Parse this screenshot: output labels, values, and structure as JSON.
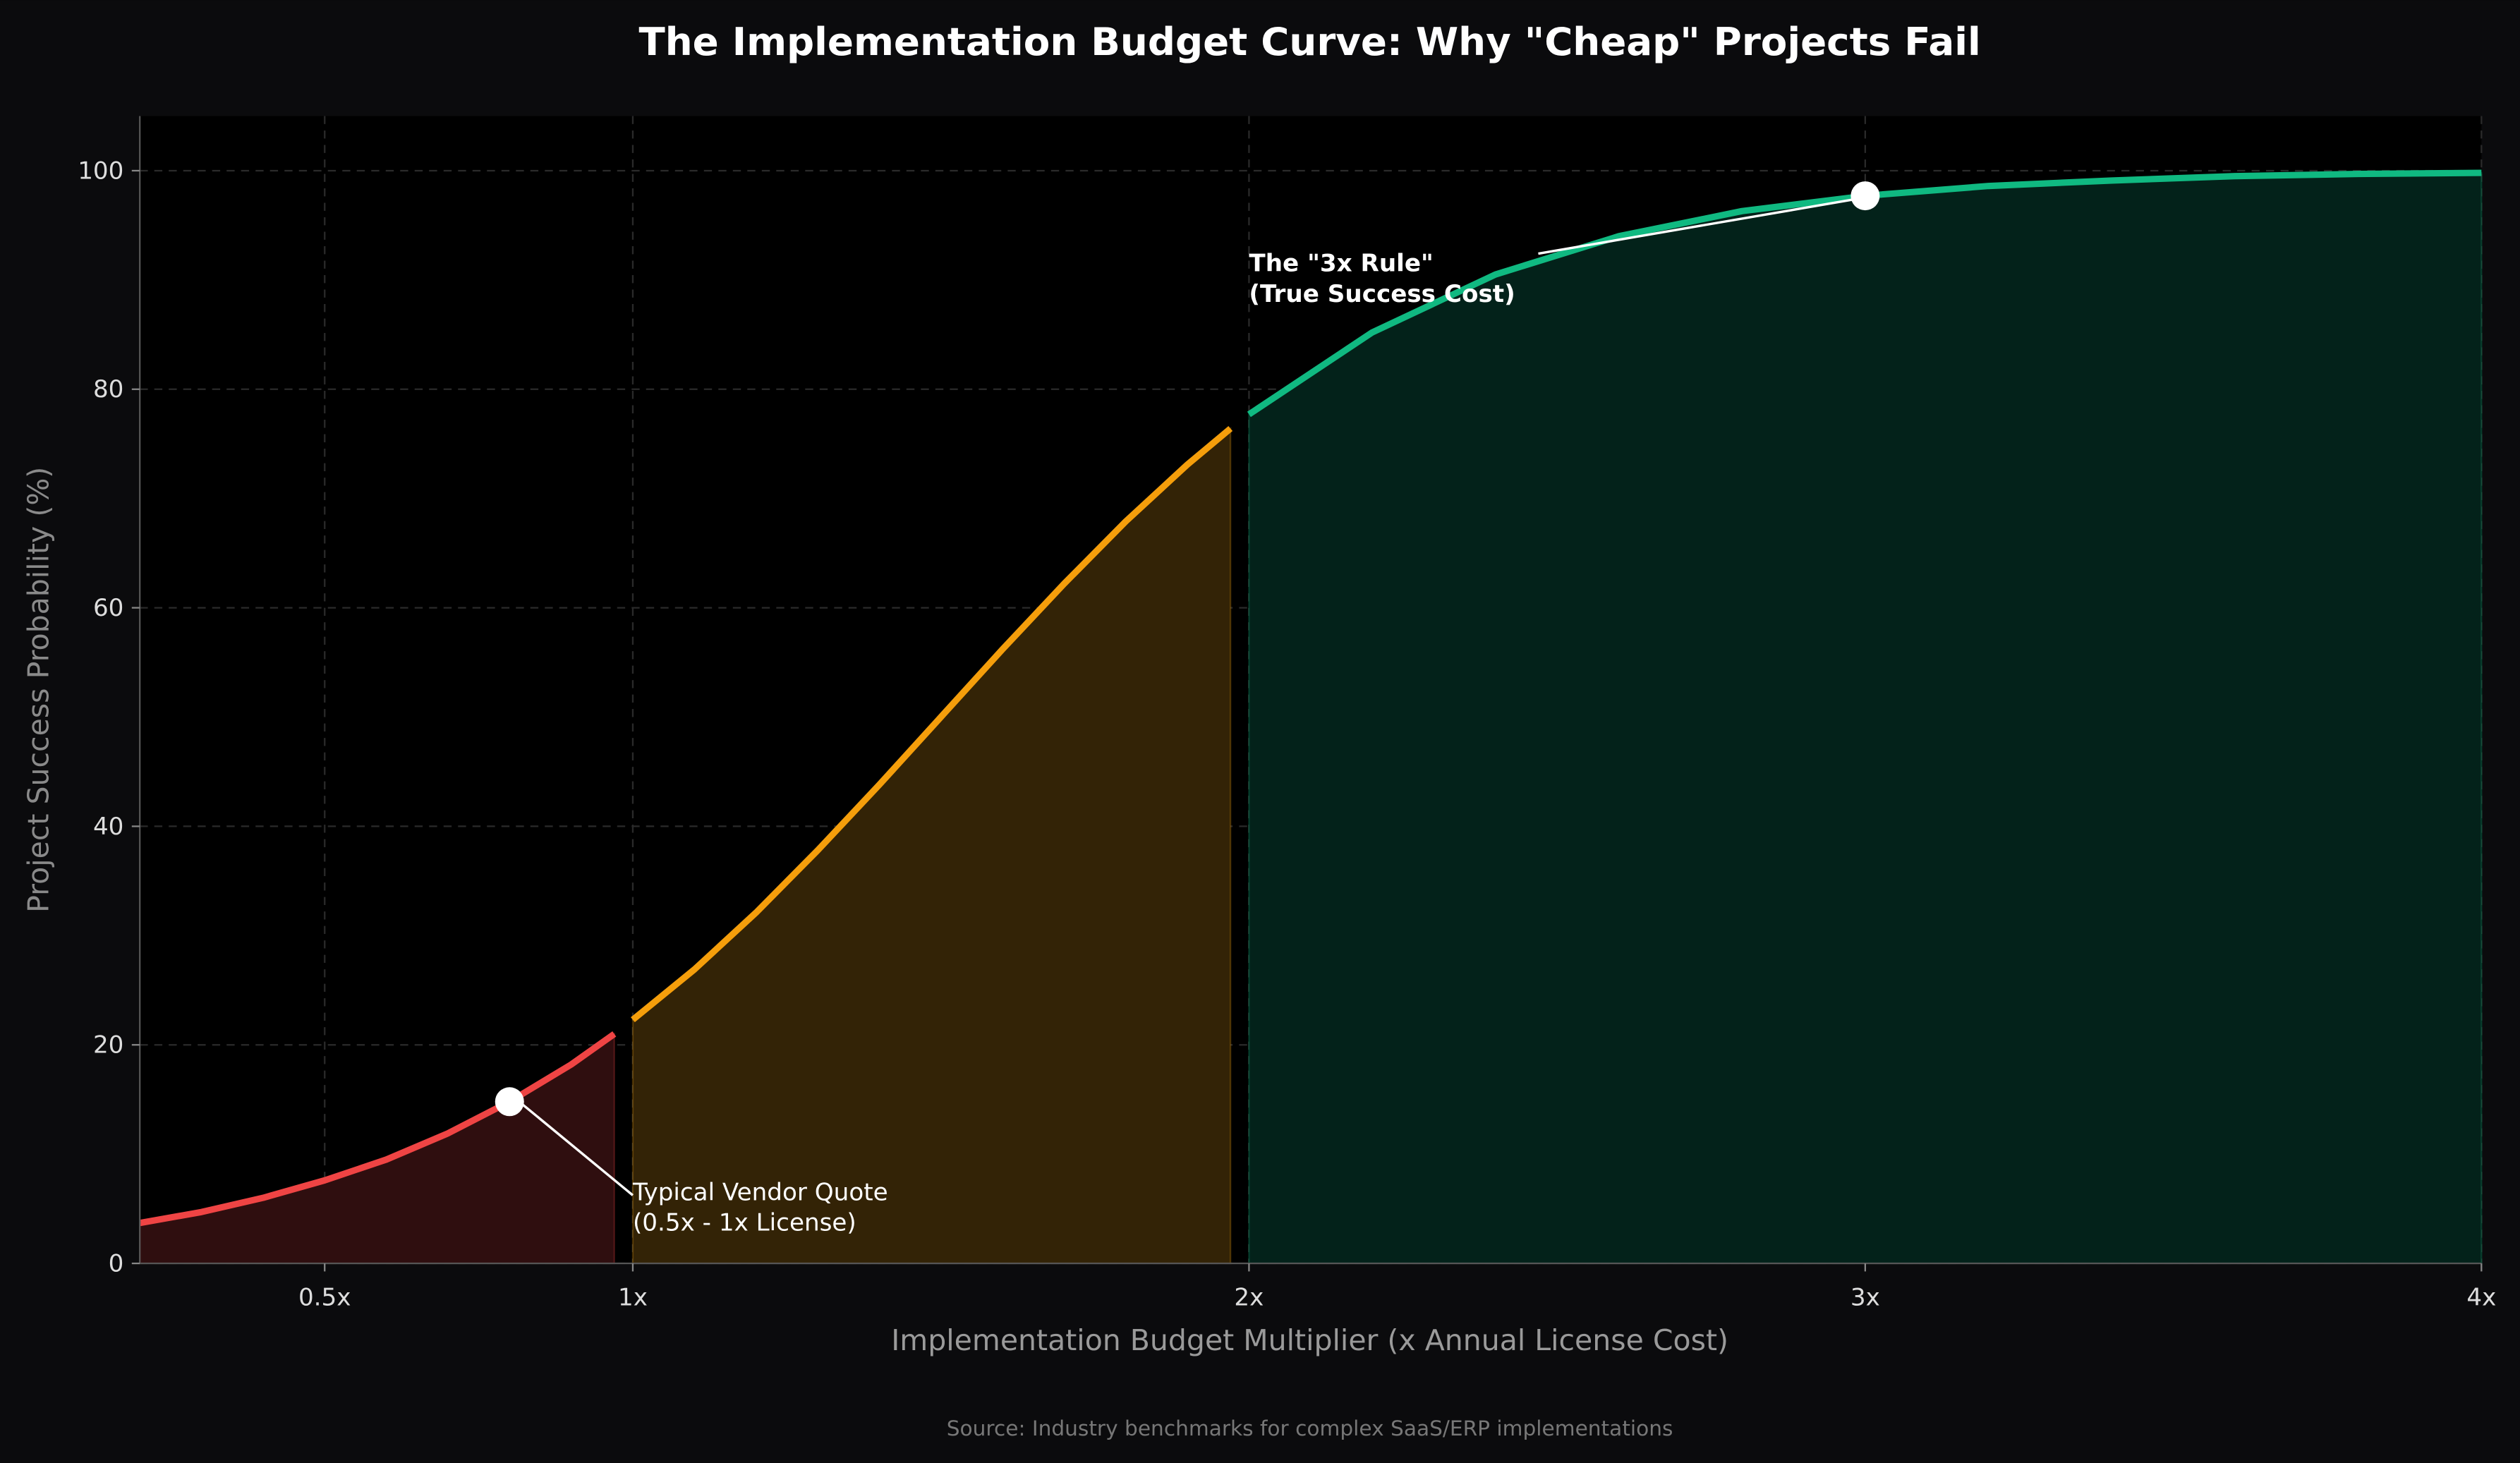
{
  "chart_data": {
    "type": "line",
    "title": "The Implementation Budget Curve: Why \"Cheap\" Projects Fail",
    "xlabel": "Implementation Budget Multiplier (x Annual License Cost)",
    "ylabel": "Project Success Probability (%)",
    "source": "Source: Industry benchmarks for complex SaaS/ERP implementations",
    "xlim": [
      0.2,
      4
    ],
    "ylim": [
      0,
      105
    ],
    "grid": true,
    "x_ticks": [
      {
        "value": 0.5,
        "label": "0.5x"
      },
      {
        "value": 1,
        "label": "1x"
      },
      {
        "value": 2,
        "label": "2x"
      },
      {
        "value": 3,
        "label": "3x"
      },
      {
        "value": 4,
        "label": "4x"
      }
    ],
    "y_ticks": [
      {
        "value": 0,
        "label": "0"
      },
      {
        "value": 20,
        "label": "20"
      },
      {
        "value": 40,
        "label": "40"
      },
      {
        "value": 60,
        "label": "60"
      },
      {
        "value": 80,
        "label": "80"
      },
      {
        "value": 100,
        "label": "100"
      }
    ],
    "segments": [
      {
        "color": "#ef4444",
        "fill": "#2f0e0f",
        "x": [
          0.2,
          0.3,
          0.4,
          0.5,
          0.6,
          0.7,
          0.8,
          0.9,
          0.97
        ],
        "y": [
          3.7,
          4.7,
          6.0,
          7.6,
          9.5,
          11.9,
          14.8,
          18.2,
          21.0
        ]
      },
      {
        "color": "#f59e0b",
        "fill": "#332306",
        "x": [
          1.0,
          1.1,
          1.2,
          1.3,
          1.4,
          1.5,
          1.6,
          1.7,
          1.8,
          1.9,
          1.97
        ],
        "y": [
          22.3,
          26.9,
          32.1,
          37.8,
          43.8,
          50.0,
          56.2,
          62.2,
          67.9,
          73.1,
          76.4
        ]
      },
      {
        "color": "#10b981",
        "fill": "#03221a",
        "x": [
          2.0,
          2.2,
          2.4,
          2.6,
          2.8,
          3.0,
          3.2,
          3.4,
          3.6,
          3.8,
          4.0
        ],
        "y": [
          77.7,
          85.2,
          90.5,
          94.0,
          96.3,
          97.7,
          98.6,
          99.1,
          99.5,
          99.7,
          99.8
        ]
      }
    ],
    "annotations": [
      {
        "point": [
          0.8,
          14.8
        ],
        "text_at": [
          1.0,
          3
        ],
        "lines": [
          "Typical Vendor Quote",
          "(0.5x - 1x License)"
        ],
        "bold": false
      },
      {
        "point": [
          3.0,
          97.7
        ],
        "text_at": [
          2.0,
          88
        ],
        "lines": [
          "The \"3x Rule\"",
          "(True Success Cost)"
        ],
        "bold": true
      }
    ]
  }
}
